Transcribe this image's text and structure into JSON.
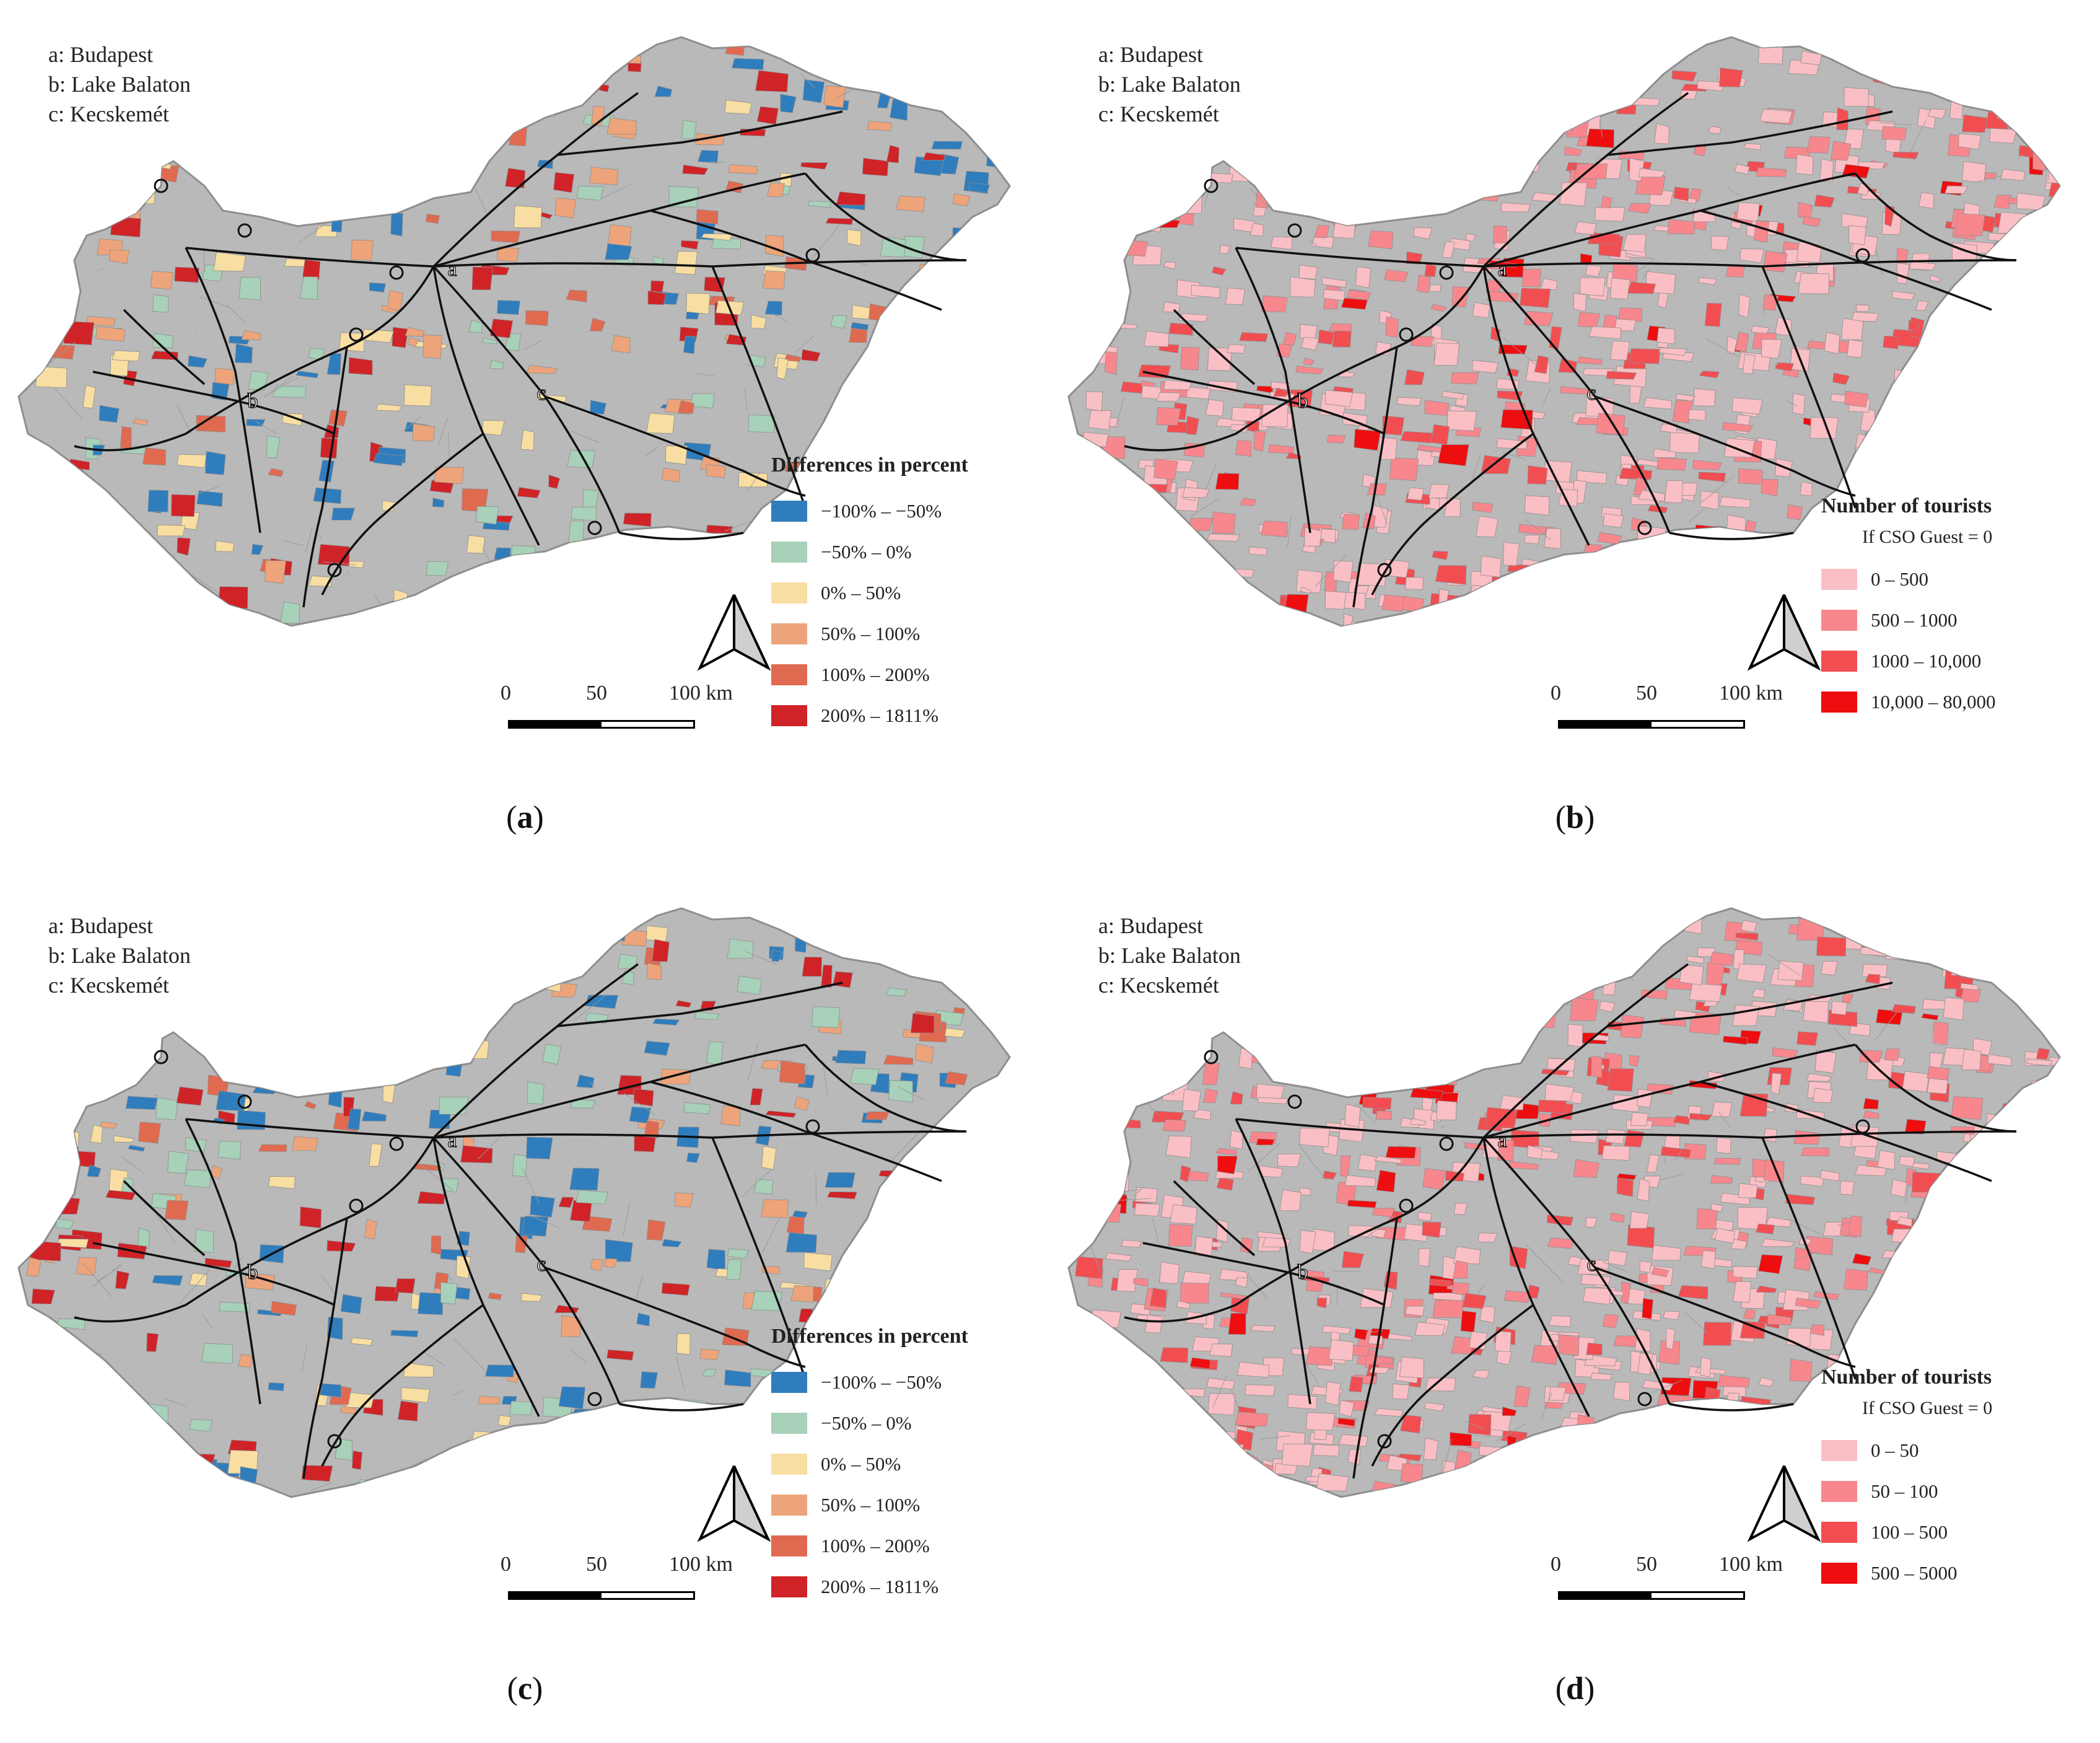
{
  "colors": {
    "map_fill": "#b9b9b9",
    "border": "#8e8e8e",
    "roads": "#111111",
    "diff_classes": [
      "#2f7dbd",
      "#a7d1b9",
      "#f8dea2",
      "#eda47a",
      "#e06a50",
      "#cf2328"
    ],
    "tourist_classes": [
      "#f9bfc4",
      "#f8878d",
      "#f24e52",
      "#ee0e10"
    ]
  },
  "places": {
    "a": "a: Budapest",
    "b": "b: Lake Balaton",
    "c": "c: Kecskemét",
    "marker_a": "a",
    "marker_b": "b",
    "marker_c": "c"
  },
  "scale": {
    "t0": "0",
    "t1": "50",
    "t2": "100 km"
  },
  "panels": [
    {
      "id": "a",
      "label_open": "(",
      "label_letter": "a",
      "label_close": ")",
      "legend_title": "Differences in percent",
      "legend_sub": "",
      "legend_items": [
        "−100% – −50%",
        "−50% – 0%",
        "0% – 50%",
        "50% – 100%",
        "100% – 200%",
        "200% – 1811%"
      ],
      "scheme": "diff"
    },
    {
      "id": "b",
      "label_open": "(",
      "label_letter": "b",
      "label_close": ")",
      "legend_title": "Number of tourists",
      "legend_sub": "If CSO Guest = 0",
      "legend_items": [
        "0 – 500",
        "500 – 1000",
        "1000 – 10,000",
        "10,000 – 80,000"
      ],
      "scheme": "tourist"
    },
    {
      "id": "c",
      "label_open": "(",
      "label_letter": "c",
      "label_close": ")",
      "legend_title": "Differences in percent",
      "legend_sub": "",
      "legend_items": [
        "−100% – −50%",
        "−50% – 0%",
        "0% – 50%",
        "50% – 100%",
        "100% – 200%",
        "200% – 1811%"
      ],
      "scheme": "diff"
    },
    {
      "id": "d",
      "label_open": "(",
      "label_letter": "d",
      "label_close": ")",
      "legend_title": "Number of tourists",
      "legend_sub": "If CSO Guest = 0",
      "legend_items": [
        "0 – 50",
        "50 – 100",
        "100 – 500",
        "500 – 5000"
      ],
      "scheme": "tourist"
    }
  ]
}
